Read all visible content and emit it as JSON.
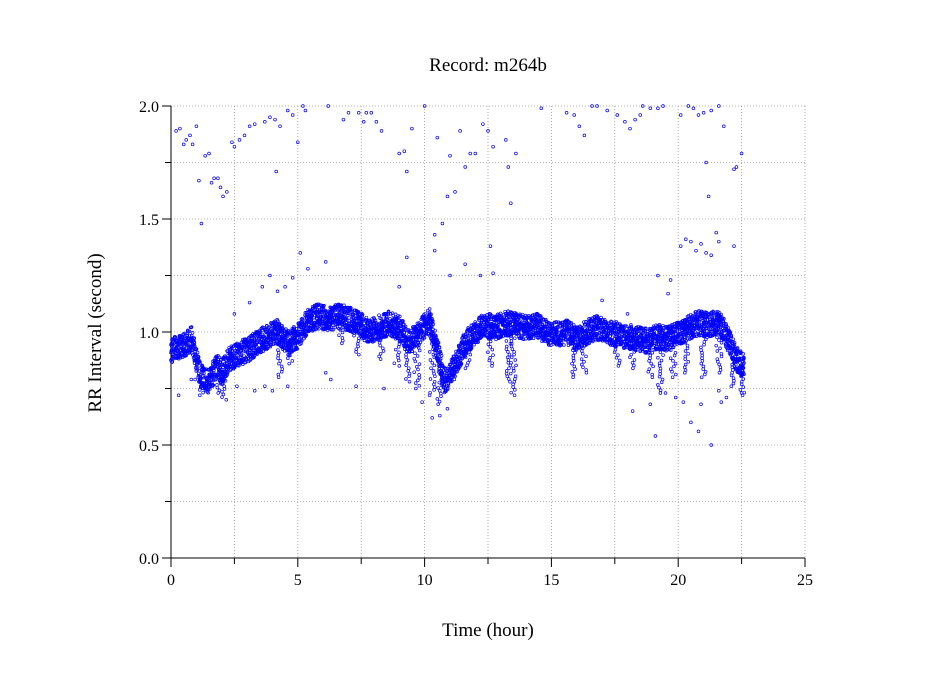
{
  "chart_data": {
    "type": "scatter",
    "title": "Record:  m264b",
    "xlabel": "Time (hour)",
    "ylabel": "RR Interval (second)",
    "xlim": [
      0,
      25
    ],
    "ylim": [
      0,
      2.0
    ],
    "x_ticks": [
      0,
      5,
      10,
      15,
      20,
      25
    ],
    "x_tick_labels": [
      "0",
      "5",
      "10",
      "15",
      "20",
      "25"
    ],
    "y_ticks": [
      0.0,
      0.5,
      1.0,
      1.5,
      2.0
    ],
    "y_tick_labels": [
      "0.0",
      "0.5",
      "1.0",
      "1.5",
      "2.0"
    ],
    "grid": true,
    "marker": "open-circle",
    "marker_color": "#0000ff",
    "x_minor_tick_step": 2.5,
    "y_minor_tick_step": 0.25,
    "series": [
      {
        "baseline": [
          [
            0.0,
            0.92
          ],
          [
            0.4,
            0.93
          ],
          [
            0.8,
            0.97
          ],
          [
            1.0,
            0.88
          ],
          [
            1.2,
            0.8
          ],
          [
            1.5,
            0.78
          ],
          [
            1.8,
            0.85
          ],
          [
            2.0,
            0.82
          ],
          [
            2.3,
            0.88
          ],
          [
            2.6,
            0.9
          ],
          [
            3.0,
            0.92
          ],
          [
            3.4,
            0.95
          ],
          [
            3.8,
            0.98
          ],
          [
            4.2,
            1.0
          ],
          [
            4.6,
            0.95
          ],
          [
            5.0,
            0.98
          ],
          [
            5.4,
            1.05
          ],
          [
            5.8,
            1.07
          ],
          [
            6.2,
            1.06
          ],
          [
            6.6,
            1.07
          ],
          [
            7.0,
            1.06
          ],
          [
            7.4,
            1.04
          ],
          [
            7.8,
            1.0
          ],
          [
            8.2,
            1.02
          ],
          [
            8.6,
            1.04
          ],
          [
            9.0,
            1.02
          ],
          [
            9.4,
            0.95
          ],
          [
            9.8,
            1.0
          ],
          [
            10.2,
            1.05
          ],
          [
            10.5,
            0.92
          ],
          [
            10.8,
            0.78
          ],
          [
            11.2,
            0.85
          ],
          [
            11.6,
            0.95
          ],
          [
            12.0,
            1.0
          ],
          [
            12.4,
            1.03
          ],
          [
            12.8,
            1.02
          ],
          [
            13.2,
            1.04
          ],
          [
            13.6,
            1.03
          ],
          [
            14.0,
            1.02
          ],
          [
            14.4,
            1.03
          ],
          [
            14.8,
            1.0
          ],
          [
            15.2,
            0.99
          ],
          [
            15.6,
            1.0
          ],
          [
            16.0,
            0.97
          ],
          [
            16.4,
            1.0
          ],
          [
            16.8,
            1.02
          ],
          [
            17.2,
            1.0
          ],
          [
            17.6,
            0.99
          ],
          [
            18.0,
            0.98
          ],
          [
            18.4,
            0.97
          ],
          [
            18.8,
            0.96
          ],
          [
            19.2,
            0.98
          ],
          [
            19.6,
            0.97
          ],
          [
            20.0,
            0.99
          ],
          [
            20.4,
            1.02
          ],
          [
            20.8,
            1.04
          ],
          [
            21.2,
            1.03
          ],
          [
            21.6,
            1.05
          ],
          [
            22.0,
            0.96
          ],
          [
            22.3,
            0.88
          ],
          [
            22.6,
            0.85
          ]
        ],
        "dips": [
          [
            1.2,
            0.72
          ],
          [
            1.9,
            0.73
          ],
          [
            2.1,
            0.7
          ],
          [
            4.3,
            0.8
          ],
          [
            4.7,
            0.86
          ],
          [
            6.7,
            0.95
          ],
          [
            7.3,
            0.9
          ],
          [
            8.3,
            0.88
          ],
          [
            8.9,
            0.85
          ],
          [
            9.3,
            0.78
          ],
          [
            9.7,
            0.75
          ],
          [
            10.3,
            0.72
          ],
          [
            10.6,
            0.68
          ],
          [
            11.1,
            0.8
          ],
          [
            11.7,
            0.84
          ],
          [
            12.6,
            0.85
          ],
          [
            13.3,
            0.78
          ],
          [
            13.5,
            0.72
          ],
          [
            15.9,
            0.8
          ],
          [
            16.3,
            0.82
          ],
          [
            17.6,
            0.85
          ],
          [
            18.2,
            0.84
          ],
          [
            18.9,
            0.8
          ],
          [
            19.3,
            0.73
          ],
          [
            19.8,
            0.8
          ],
          [
            20.3,
            0.82
          ],
          [
            21.0,
            0.8
          ],
          [
            21.6,
            0.82
          ],
          [
            22.2,
            0.76
          ],
          [
            22.5,
            0.72
          ]
        ],
        "outliers": [
          [
            0.2,
            1.89
          ],
          [
            0.35,
            1.9
          ],
          [
            0.5,
            1.83
          ],
          [
            0.6,
            1.85
          ],
          [
            0.75,
            1.87
          ],
          [
            0.85,
            1.83
          ],
          [
            1.0,
            1.91
          ],
          [
            1.1,
            1.67
          ],
          [
            1.2,
            1.48
          ],
          [
            1.35,
            1.78
          ],
          [
            1.5,
            1.79
          ],
          [
            1.6,
            1.66
          ],
          [
            1.7,
            1.68
          ],
          [
            1.85,
            1.68
          ],
          [
            1.95,
            1.64
          ],
          [
            2.05,
            1.6
          ],
          [
            2.2,
            1.62
          ],
          [
            2.4,
            1.84
          ],
          [
            2.5,
            1.82
          ],
          [
            2.7,
            1.85
          ],
          [
            2.9,
            1.87
          ],
          [
            3.1,
            1.91
          ],
          [
            3.3,
            1.92
          ],
          [
            3.7,
            1.93
          ],
          [
            3.9,
            1.95
          ],
          [
            4.1,
            1.94
          ],
          [
            4.15,
            1.71
          ],
          [
            4.3,
            1.91
          ],
          [
            4.6,
            1.98
          ],
          [
            4.8,
            1.96
          ],
          [
            5.0,
            1.84
          ],
          [
            5.2,
            2.0
          ],
          [
            5.3,
            1.98
          ],
          [
            6.2,
            2.0
          ],
          [
            6.8,
            1.94
          ],
          [
            7.0,
            1.97
          ],
          [
            7.4,
            1.97
          ],
          [
            7.6,
            1.93
          ],
          [
            7.7,
            1.97
          ],
          [
            7.9,
            1.97
          ],
          [
            8.1,
            1.93
          ],
          [
            8.3,
            1.89
          ],
          [
            9.0,
            1.79
          ],
          [
            9.2,
            1.8
          ],
          [
            9.3,
            1.71
          ],
          [
            9.5,
            1.9
          ],
          [
            10.0,
            2.0
          ],
          [
            10.4,
            1.43
          ],
          [
            10.5,
            1.86
          ],
          [
            10.7,
            1.48
          ],
          [
            10.9,
            1.6
          ],
          [
            11.0,
            1.78
          ],
          [
            11.2,
            1.62
          ],
          [
            11.4,
            1.89
          ],
          [
            11.6,
            1.73
          ],
          [
            11.8,
            1.79
          ],
          [
            12.0,
            1.79
          ],
          [
            12.3,
            1.92
          ],
          [
            12.5,
            1.89
          ],
          [
            12.7,
            1.82
          ],
          [
            13.2,
            1.85
          ],
          [
            13.3,
            1.73
          ],
          [
            13.4,
            1.57
          ],
          [
            13.6,
            1.79
          ],
          [
            14.6,
            1.99
          ],
          [
            15.6,
            1.97
          ],
          [
            15.9,
            1.96
          ],
          [
            16.1,
            1.91
          ],
          [
            16.3,
            1.87
          ],
          [
            16.6,
            2.0
          ],
          [
            16.8,
            2.0
          ],
          [
            17.2,
            1.98
          ],
          [
            17.6,
            1.96
          ],
          [
            17.9,
            1.93
          ],
          [
            18.1,
            1.9
          ],
          [
            18.3,
            1.94
          ],
          [
            18.5,
            1.96
          ],
          [
            18.6,
            2.0
          ],
          [
            18.9,
            1.99
          ],
          [
            19.2,
            1.99
          ],
          [
            19.4,
            2.0
          ],
          [
            20.1,
            1.96
          ],
          [
            20.4,
            2.0
          ],
          [
            20.6,
            1.99
          ],
          [
            20.8,
            1.96
          ],
          [
            21.0,
            1.97
          ],
          [
            21.3,
            1.98
          ],
          [
            21.6,
            2.0
          ],
          [
            21.8,
            1.91
          ],
          [
            22.2,
            1.72
          ],
          [
            22.3,
            1.73
          ],
          [
            22.5,
            1.79
          ],
          [
            21.1,
            1.75
          ],
          [
            21.2,
            1.6
          ],
          [
            20.1,
            1.38
          ],
          [
            20.3,
            1.41
          ],
          [
            20.5,
            1.4
          ],
          [
            20.7,
            1.36
          ],
          [
            20.9,
            1.39
          ],
          [
            21.1,
            1.35
          ],
          [
            21.3,
            1.34
          ],
          [
            21.5,
            1.44
          ],
          [
            21.6,
            1.4
          ],
          [
            22.2,
            1.38
          ],
          [
            2.5,
            1.08
          ],
          [
            3.1,
            1.13
          ],
          [
            3.6,
            1.2
          ],
          [
            3.9,
            1.25
          ],
          [
            4.2,
            1.18
          ],
          [
            4.5,
            1.2
          ],
          [
            4.8,
            1.24
          ],
          [
            5.1,
            1.35
          ],
          [
            5.4,
            1.28
          ],
          [
            6.1,
            1.31
          ],
          [
            9.0,
            1.2
          ],
          [
            9.3,
            1.33
          ],
          [
            10.4,
            1.36
          ],
          [
            11.0,
            1.25
          ],
          [
            11.6,
            1.3
          ],
          [
            12.2,
            1.25
          ],
          [
            12.6,
            1.38
          ],
          [
            12.7,
            1.26
          ],
          [
            17.0,
            1.14
          ],
          [
            18.0,
            1.08
          ],
          [
            19.2,
            1.25
          ],
          [
            19.6,
            1.17
          ],
          [
            19.7,
            1.23
          ],
          [
            0.3,
            0.72
          ],
          [
            0.8,
            0.79
          ],
          [
            0.95,
            0.79
          ],
          [
            2.6,
            0.76
          ],
          [
            3.3,
            0.74
          ],
          [
            3.7,
            0.76
          ],
          [
            4.0,
            0.74
          ],
          [
            4.6,
            0.76
          ],
          [
            6.1,
            0.82
          ],
          [
            6.3,
            0.79
          ],
          [
            7.3,
            0.76
          ],
          [
            8.4,
            0.75
          ],
          [
            9.9,
            0.69
          ],
          [
            10.3,
            0.62
          ],
          [
            10.6,
            0.63
          ],
          [
            10.9,
            0.66
          ],
          [
            18.2,
            0.65
          ],
          [
            18.9,
            0.68
          ],
          [
            19.1,
            0.54
          ],
          [
            19.5,
            0.73
          ],
          [
            19.9,
            0.71
          ],
          [
            20.2,
            0.69
          ],
          [
            20.5,
            0.6
          ],
          [
            20.8,
            0.56
          ],
          [
            20.9,
            0.68
          ],
          [
            21.3,
            0.5
          ],
          [
            21.6,
            0.74
          ],
          [
            21.7,
            0.69
          ],
          [
            21.9,
            0.71
          ],
          [
            22.5,
            0.73
          ]
        ]
      }
    ]
  }
}
